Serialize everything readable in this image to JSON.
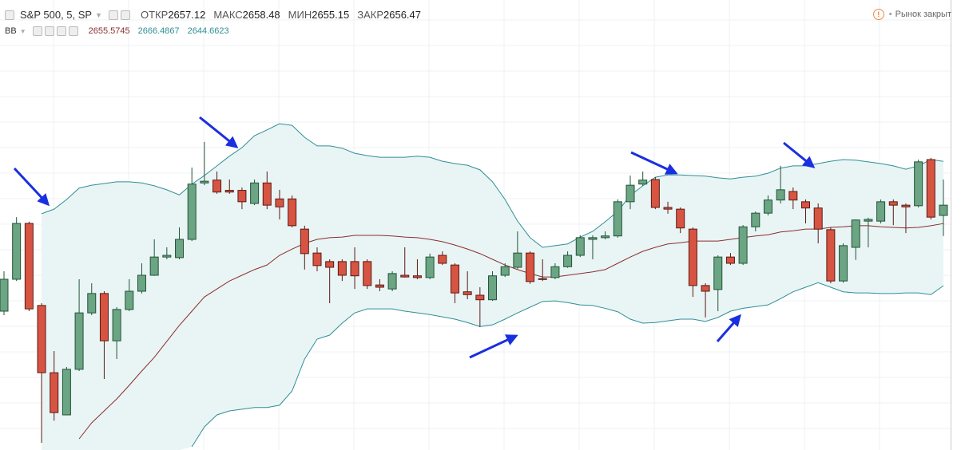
{
  "header": {
    "symbol": "S&P 500, 5, SP",
    "fields": [
      {
        "label": "ОТКР",
        "value": 2657.12
      },
      {
        "label": "МАКС",
        "value": 2658.48
      },
      {
        "label": "МИН",
        "value": 2655.15
      },
      {
        "label": "ЗАКР",
        "value": 2656.47
      }
    ],
    "status": "Рынок закрыт"
  },
  "indicator": {
    "name": "BB"
  },
  "chart_data": {
    "type": "candlestick",
    "up_color": "#6ba583",
    "up_border": "#225437",
    "down_color": "#d75442",
    "down_border": "#5b1a13",
    "band_fill": "#e9f4f5",
    "ylim": [
      2615.84,
      2694.8
    ],
    "open": [
      2640.2,
      2645.8,
      2655.6,
      2641.2,
      2629.4,
      2622.0,
      2630.0,
      2639.9,
      2643.3,
      2635.0,
      2640.5,
      2643.7,
      2646.5,
      2649.7,
      2649.6,
      2652.8,
      2662.7,
      2663.2,
      2661.4,
      2661.4,
      2659.1,
      2662.7,
      2659.9,
      2659.9,
      2654.6,
      2650.4,
      2648.9,
      2648.9,
      2648.9,
      2648.9,
      2644.8,
      2644.1,
      2646.5,
      2646.4,
      2646.1,
      2650.0,
      2648.3,
      2643.6,
      2643.0,
      2642.2,
      2646.5,
      2647.9,
      2650.4,
      2645.9,
      2646.1,
      2648.0,
      2650.0,
      2652.8,
      2653.1,
      2653.4,
      2659.4,
      2662.5,
      2663.3,
      2658.4,
      2658.1,
      2654.6,
      2644.7,
      2644.0,
      2649.7,
      2648.6,
      2655.0,
      2657.4,
      2659.7,
      2661.2,
      2659.4,
      2658.3,
      2654.5,
      2645.5,
      2651.4,
      2656.0,
      2656.0,
      2659.4,
      2658.8,
      2658.7,
      2666.8,
      2657.0
    ],
    "high": [
      2647.2,
      2656.7,
      2655.9,
      2641.6,
      2633.2,
      2630.4,
      2645.8,
      2645.1,
      2643.7,
      2640.9,
      2645.8,
      2648.6,
      2652.8,
      2651.4,
      2654.9,
      2665.4,
      2669.9,
      2664.7,
      2663.3,
      2661.9,
      2663.3,
      2664.7,
      2661.5,
      2660.5,
      2655.2,
      2651.4,
      2649.3,
      2649.3,
      2651.4,
      2649.3,
      2645.8,
      2647.2,
      2651.4,
      2649.3,
      2650.3,
      2650.7,
      2648.6,
      2647.2,
      2644.4,
      2647.2,
      2648.6,
      2654.2,
      2650.7,
      2649.3,
      2648.6,
      2650.7,
      2653.5,
      2653.5,
      2654.2,
      2659.8,
      2664.0,
      2664.7,
      2663.7,
      2659.4,
      2658.4,
      2654.9,
      2645.1,
      2650.0,
      2650.4,
      2655.3,
      2657.7,
      2660.5,
      2665.7,
      2661.9,
      2659.8,
      2659.1,
      2654.9,
      2652.1,
      2656.3,
      2656.6,
      2659.8,
      2659.8,
      2659.1,
      2666.8,
      2667.1,
      2663.3
    ],
    "low": [
      2639.5,
      2645.5,
      2640.2,
      2617.1,
      2621.0,
      2622.0,
      2629.7,
      2639.5,
      2628.3,
      2631.8,
      2640.2,
      2643.3,
      2646.4,
      2649.3,
      2649.3,
      2652.5,
      2662.3,
      2660.8,
      2660.8,
      2658.1,
      2658.8,
      2658.1,
      2656.3,
      2654.9,
      2647.5,
      2647.2,
      2641.6,
      2645.5,
      2644.1,
      2644.1,
      2643.7,
      2643.7,
      2646.1,
      2645.8,
      2645.8,
      2648.3,
      2641.6,
      2642.3,
      2637.4,
      2642.0,
      2646.2,
      2647.6,
      2645.0,
      2645.5,
      2645.8,
      2647.8,
      2649.7,
      2649.3,
      2652.8,
      2653.1,
      2658.1,
      2662.2,
      2658.1,
      2657.3,
      2653.9,
      2642.7,
      2639.1,
      2640.2,
      2648.3,
      2648.3,
      2654.2,
      2657.0,
      2659.1,
      2658.1,
      2655.6,
      2652.1,
      2645.1,
      2645.2,
      2649.2,
      2651.4,
      2655.6,
      2655.3,
      2653.9,
      2658.4,
      2656.3,
      2653.4
    ],
    "close": [
      2645.8,
      2655.6,
      2640.6,
      2629.4,
      2622.4,
      2630.0,
      2639.9,
      2643.3,
      2635.0,
      2640.5,
      2643.7,
      2646.5,
      2649.7,
      2650.0,
      2652.8,
      2662.5,
      2663.0,
      2661.1,
      2661.1,
      2659.4,
      2662.7,
      2658.8,
      2658.5,
      2655.2,
      2650.3,
      2648.2,
      2647.9,
      2646.5,
      2646.4,
      2644.7,
      2644.4,
      2646.8,
      2646.2,
      2646.1,
      2649.7,
      2648.6,
      2643.4,
      2643.1,
      2642.2,
      2646.4,
      2648.0,
      2650.4,
      2645.4,
      2645.8,
      2648.0,
      2650.0,
      2653.1,
      2653.1,
      2653.4,
      2659.4,
      2662.3,
      2663.2,
      2658.4,
      2658.1,
      2654.8,
      2644.7,
      2643.7,
      2649.7,
      2648.6,
      2655.0,
      2657.4,
      2659.7,
      2661.5,
      2659.7,
      2658.3,
      2654.6,
      2645.5,
      2651.7,
      2656.2,
      2656.3,
      2659.4,
      2658.8,
      2658.5,
      2666.4,
      2656.7,
      2658.8
    ],
    "lines": [
      {
        "color": "#8b2e2e",
        "values": [
          null,
          null,
          null,
          null,
          null,
          null,
          2617.8,
          2620.6,
          2622.7,
          2624.8,
          2627.2,
          2629.7,
          2632.1,
          2634.9,
          2637.7,
          2640.2,
          2642.7,
          2644.1,
          2645.5,
          2646.5,
          2647.5,
          2648.3,
          2650.0,
          2651.1,
          2652.1,
          2652.8,
          2653.1,
          2653.2,
          2653.5,
          2653.5,
          2653.5,
          2653.4,
          2653.2,
          2653.1,
          2652.8,
          2652.4,
          2651.8,
          2651.1,
          2650.3,
          2649.3,
          2648.3,
          2647.5,
          2646.8,
          2646.2,
          2646.2,
          2646.5,
          2646.8,
          2647.1,
          2647.5,
          2648.6,
          2649.7,
          2650.7,
          2651.4,
          2652.0,
          2652.2,
          2652.5,
          2652.5,
          2652.5,
          2652.8,
          2653.1,
          2653.4,
          2653.6,
          2654.1,
          2654.3,
          2654.6,
          2654.6,
          2654.9,
          2655.0,
          2655.2,
          2655.2,
          2655.0,
          2654.9,
          2654.8,
          2654.9,
          2655.2,
          2655.5745
        ]
      },
      {
        "color": "#2f8f96",
        "values": [
          null,
          null,
          null,
          2657.3,
          2658.1,
          2659.8,
          2661.8,
          2662.3,
          2662.6,
          2662.9,
          2662.9,
          2662.7,
          2662.2,
          2661.5,
          2660.6,
          2662.5,
          2664.0,
          2665.7,
          2667.4,
          2668.9,
          2671.0,
          2672.0,
          2673.1,
          2672.8,
          2670.7,
          2669.2,
          2669.2,
          2668.8,
          2667.9,
          2667.5,
          2667.2,
          2667.2,
          2667.2,
          2667.4,
          2667.2,
          2666.5,
          2666.1,
          2665.8,
          2665.0,
          2662.9,
          2659.8,
          2656.0,
          2653.1,
          2651.4,
          2651.7,
          2652.0,
          2653.2,
          2654.2,
          2655.9,
          2657.7,
          2660.5,
          2662.2,
          2663.7,
          2664.1,
          2664.1,
          2664.0,
          2663.9,
          2663.6,
          2663.4,
          2663.7,
          2663.9,
          2664.4,
          2665.3,
          2665.7,
          2665.7,
          2666.1,
          2666.5,
          2666.8,
          2666.7,
          2666.4,
          2666.1,
          2665.7,
          2665.1,
          2665.7,
          2666.8,
          2666.4867
        ]
      },
      {
        "color": "#2f8f96",
        "values": [
          null,
          null,
          null,
          null,
          null,
          null,
          null,
          null,
          null,
          null,
          null,
          null,
          null,
          null,
          null,
          2616.4,
          2619.9,
          2622.0,
          2622.7,
          2623.0,
          2623.3,
          2623.3,
          2623.7,
          2626.2,
          2631.8,
          2635.3,
          2636.0,
          2638.1,
          2639.9,
          2640.6,
          2640.6,
          2640.6,
          2640.2,
          2639.9,
          2639.6,
          2639.2,
          2638.8,
          2638.2,
          2637.5,
          2637.8,
          2638.8,
          2639.9,
          2640.9,
          2641.9,
          2642.0,
          2641.7,
          2641.3,
          2641.2,
          2640.7,
          2640.1,
          2638.8,
          2638.1,
          2638.2,
          2638.5,
          2638.8,
          2638.8,
          2638.4,
          2639.1,
          2640.2,
          2640.7,
          2641.0,
          2641.3,
          2642.4,
          2643.6,
          2644.4,
          2645.2,
          2644.4,
          2643.6,
          2643.4,
          2643.4,
          2643.3,
          2643.3,
          2643.4,
          2643.4,
          2643.1,
          2644.6623
        ]
      }
    ]
  }
}
